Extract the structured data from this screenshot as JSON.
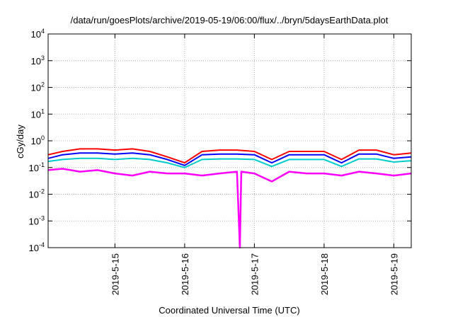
{
  "chart_data": {
    "type": "line",
    "title": "/data/run/goesPlots/archive/2019-05-19/06:00/flux/../bryn/5daysEarthData.plot",
    "xlabel": "Coordinated Universal Time (UTC)",
    "ylabel": "cGy/day",
    "y_scale": "log",
    "ylim": [
      0.0001,
      10000
    ],
    "y_tick_labels": [
      {
        "base": "10",
        "exp": "-4"
      },
      {
        "base": "10",
        "exp": "-3"
      },
      {
        "base": "10",
        "exp": "-2"
      },
      {
        "base": "10",
        "exp": "-1"
      },
      {
        "base": "10",
        "exp": "0"
      },
      {
        "base": "10",
        "exp": "1"
      },
      {
        "base": "10",
        "exp": "2"
      },
      {
        "base": "10",
        "exp": "3"
      },
      {
        "base": "10",
        "exp": "4"
      }
    ],
    "xlim": [
      "2019-05-14T01:00",
      "2019-05-19T06:00"
    ],
    "x_ticks": [
      "2019-5-15",
      "2019-5-16",
      "2019-5-17",
      "2019-5-18",
      "2019-5-19"
    ],
    "grid": true,
    "legend": "none",
    "series": [
      {
        "color": "#ff0000",
        "x": [
          "2019-05-14T01:00",
          "2019-05-14T06:00",
          "2019-05-14T12:00",
          "2019-05-14T18:00",
          "2019-05-15T00:00",
          "2019-05-15T06:00",
          "2019-05-15T12:00",
          "2019-05-15T18:00",
          "2019-05-16T00:00",
          "2019-05-16T06:00",
          "2019-05-16T12:00",
          "2019-05-16T18:00",
          "2019-05-17T00:00",
          "2019-05-17T06:00",
          "2019-05-17T12:00",
          "2019-05-17T18:00",
          "2019-05-18T00:00",
          "2019-05-18T06:00",
          "2019-05-18T12:00",
          "2019-05-18T18:00",
          "2019-05-19T00:00",
          "2019-05-19T06:00"
        ],
        "y": [
          0.3,
          0.4,
          0.5,
          0.5,
          0.45,
          0.5,
          0.4,
          0.25,
          0.15,
          0.4,
          0.45,
          0.45,
          0.4,
          0.2,
          0.4,
          0.4,
          0.4,
          0.2,
          0.45,
          0.45,
          0.3,
          0.35
        ]
      },
      {
        "color": "#0000ff",
        "x": [
          "2019-05-14T01:00",
          "2019-05-14T06:00",
          "2019-05-14T12:00",
          "2019-05-14T18:00",
          "2019-05-15T00:00",
          "2019-05-15T06:00",
          "2019-05-15T12:00",
          "2019-05-15T18:00",
          "2019-05-16T00:00",
          "2019-05-16T06:00",
          "2019-05-16T12:00",
          "2019-05-16T18:00",
          "2019-05-17T00:00",
          "2019-05-17T06:00",
          "2019-05-17T12:00",
          "2019-05-17T18:00",
          "2019-05-18T00:00",
          "2019-05-18T06:00",
          "2019-05-18T12:00",
          "2019-05-18T18:00",
          "2019-05-19T00:00",
          "2019-05-19T06:00"
        ],
        "y": [
          0.22,
          0.3,
          0.35,
          0.35,
          0.32,
          0.35,
          0.3,
          0.2,
          0.12,
          0.3,
          0.32,
          0.32,
          0.3,
          0.15,
          0.3,
          0.3,
          0.3,
          0.15,
          0.32,
          0.32,
          0.22,
          0.25
        ]
      },
      {
        "color": "#00cccc",
        "x": [
          "2019-05-14T01:00",
          "2019-05-14T06:00",
          "2019-05-14T12:00",
          "2019-05-14T18:00",
          "2019-05-15T00:00",
          "2019-05-15T06:00",
          "2019-05-15T12:00",
          "2019-05-15T18:00",
          "2019-05-16T00:00",
          "2019-05-16T06:00",
          "2019-05-16T12:00",
          "2019-05-16T18:00",
          "2019-05-17T00:00",
          "2019-05-17T06:00",
          "2019-05-17T12:00",
          "2019-05-17T18:00",
          "2019-05-18T00:00",
          "2019-05-18T06:00",
          "2019-05-18T12:00",
          "2019-05-18T18:00",
          "2019-05-19T00:00",
          "2019-05-19T06:00"
        ],
        "y": [
          0.17,
          0.2,
          0.22,
          0.22,
          0.2,
          0.22,
          0.2,
          0.15,
          0.1,
          0.2,
          0.21,
          0.21,
          0.2,
          0.11,
          0.2,
          0.2,
          0.2,
          0.11,
          0.21,
          0.21,
          0.16,
          0.18
        ]
      },
      {
        "color": "#ff00ff",
        "x": [
          "2019-05-14T01:00",
          "2019-05-14T06:00",
          "2019-05-14T12:00",
          "2019-05-14T18:00",
          "2019-05-15T00:00",
          "2019-05-15T06:00",
          "2019-05-15T12:00",
          "2019-05-15T18:00",
          "2019-05-16T00:00",
          "2019-05-16T06:00",
          "2019-05-16T12:00",
          "2019-05-16T18:00",
          "2019-05-16T19:00",
          "2019-05-16T19:30",
          "2019-05-17T00:00",
          "2019-05-17T06:00",
          "2019-05-17T12:00",
          "2019-05-17T18:00",
          "2019-05-18T00:00",
          "2019-05-18T06:00",
          "2019-05-18T12:00",
          "2019-05-18T18:00",
          "2019-05-19T00:00",
          "2019-05-19T06:00"
        ],
        "y": [
          0.08,
          0.09,
          0.07,
          0.08,
          0.06,
          0.05,
          0.07,
          0.06,
          0.06,
          0.05,
          0.06,
          0.07,
          0.0001,
          0.07,
          0.06,
          0.03,
          0.07,
          0.06,
          0.06,
          0.05,
          0.07,
          0.06,
          0.05,
          0.06
        ]
      }
    ]
  }
}
